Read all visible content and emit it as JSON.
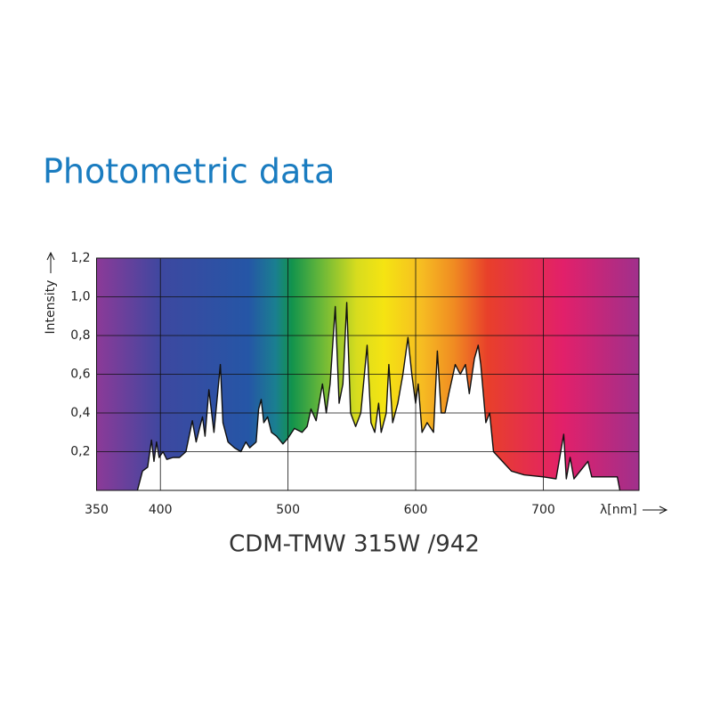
{
  "chart_data": {
    "type": "line",
    "title": "Photometric data",
    "subtitle": "CDM-TMW 315W /942",
    "y_label": "Intensity",
    "x_label": "λ[nm]",
    "xlim": [
      350,
      775
    ],
    "ylim": [
      0,
      1.2
    ],
    "xticks": [
      350,
      400,
      500,
      600,
      700
    ],
    "yticks": [
      {
        "value": 0.2,
        "label": "0,2"
      },
      {
        "value": 0.4,
        "label": "0,4"
      },
      {
        "value": 0.6,
        "label": "0,6"
      },
      {
        "value": 0.8,
        "label": "0,8"
      },
      {
        "value": 1.0,
        "label": "1,0"
      },
      {
        "value": 1.2,
        "label": "1,2"
      }
    ],
    "grid": true,
    "color": "#111111",
    "x": [
      382,
      384,
      386,
      390,
      393,
      395,
      397,
      399,
      402,
      405,
      410,
      415,
      420,
      425,
      428,
      431,
      433,
      435,
      438,
      442,
      447,
      449,
      453,
      458,
      463,
      467,
      470,
      475,
      477,
      479,
      481,
      484,
      487,
      491,
      496,
      500,
      505,
      511,
      515,
      518,
      522,
      527,
      530,
      533,
      537,
      540,
      543,
      546,
      549,
      553,
      557,
      562,
      565,
      568,
      571,
      573,
      577,
      579,
      582,
      586,
      590,
      594,
      597,
      600,
      602,
      605,
      609,
      614,
      617,
      620,
      623,
      626,
      631,
      635,
      639,
      642,
      646,
      649,
      651,
      655,
      658,
      661,
      668,
      675,
      685,
      700,
      710,
      716,
      718,
      721,
      724,
      735,
      738,
      750,
      758,
      760
    ],
    "values": [
      0,
      0.05,
      0.1,
      0.12,
      0.26,
      0.15,
      0.25,
      0.17,
      0.2,
      0.16,
      0.17,
      0.17,
      0.2,
      0.36,
      0.25,
      0.33,
      0.38,
      0.28,
      0.52,
      0.3,
      0.65,
      0.35,
      0.25,
      0.22,
      0.2,
      0.25,
      0.22,
      0.25,
      0.42,
      0.47,
      0.35,
      0.38,
      0.3,
      0.28,
      0.24,
      0.27,
      0.32,
      0.3,
      0.33,
      0.42,
      0.36,
      0.55,
      0.4,
      0.55,
      0.95,
      0.45,
      0.55,
      0.97,
      0.4,
      0.33,
      0.4,
      0.75,
      0.35,
      0.3,
      0.45,
      0.3,
      0.4,
      0.65,
      0.35,
      0.45,
      0.6,
      0.79,
      0.6,
      0.45,
      0.55,
      0.3,
      0.35,
      0.3,
      0.72,
      0.4,
      0.4,
      0.5,
      0.65,
      0.6,
      0.65,
      0.5,
      0.68,
      0.75,
      0.65,
      0.35,
      0.4,
      0.2,
      0.15,
      0.1,
      0.08,
      0.07,
      0.06,
      0.29,
      0.06,
      0.17,
      0.06,
      0.15,
      0.07,
      0.07,
      0.07,
      0
    ]
  }
}
